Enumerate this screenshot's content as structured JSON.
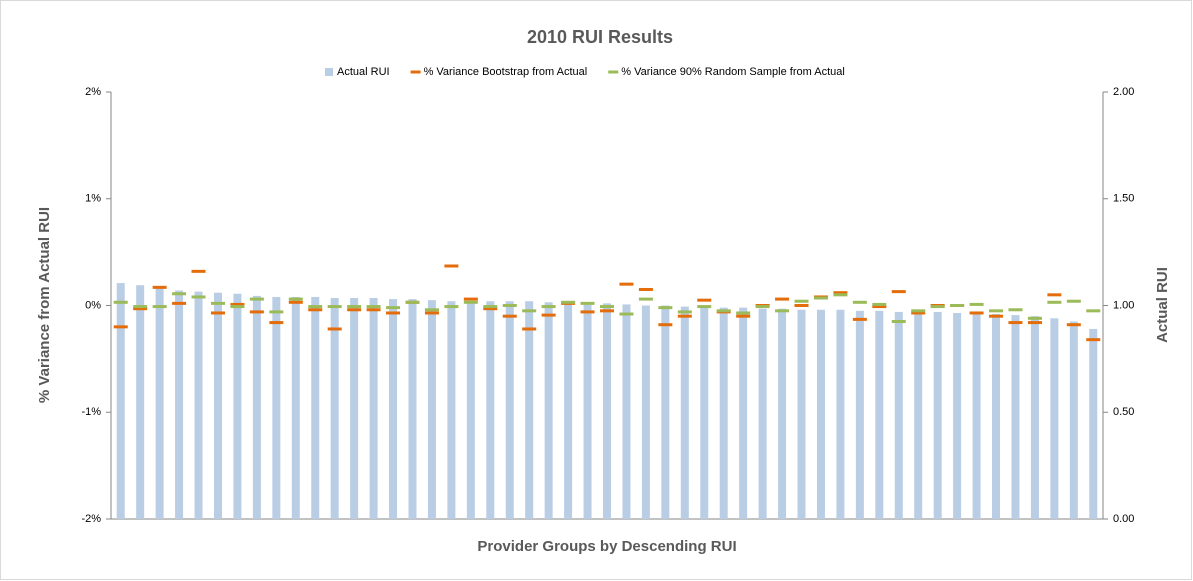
{
  "chart_data": {
    "type": "bar",
    "title": "2010 RUI Results",
    "x_label": "Provider Groups by Descending RUI",
    "y_label": "% Variance from Actual RUI",
    "y2_label": "Actual RUI",
    "categories": [
      null,
      null,
      null,
      null,
      null,
      null,
      null,
      null,
      null,
      null,
      null,
      null,
      null,
      null,
      null,
      null,
      null,
      null,
      null,
      null,
      null,
      null,
      null,
      null,
      null,
      null,
      null,
      null,
      null,
      null,
      null,
      null,
      null,
      null,
      null,
      null,
      null,
      null,
      null,
      null,
      null,
      null,
      null,
      null,
      null,
      null,
      null,
      null,
      null,
      null,
      null
    ],
    "series": [
      {
        "name": "Actual RUI",
        "type": "bar",
        "axis": "y2",
        "color": "#b9cde5",
        "values": [
          1.105,
          1.095,
          1.08,
          1.07,
          1.065,
          1.06,
          1.055,
          1.045,
          1.04,
          1.04,
          1.04,
          1.035,
          1.035,
          1.035,
          1.03,
          1.03,
          1.025,
          1.02,
          1.02,
          1.02,
          1.02,
          1.02,
          1.015,
          1.015,
          1.01,
          1.01,
          1.005,
          1.0,
          1.0,
          0.995,
          0.99,
          0.99,
          0.99,
          0.985,
          0.985,
          0.98,
          0.98,
          0.98,
          0.975,
          0.975,
          0.97,
          0.97,
          0.97,
          0.965,
          0.96,
          0.96,
          0.955,
          0.95,
          0.94,
          0.925,
          0.89
        ]
      },
      {
        "name": "% Variance Bootstrap from Actual",
        "type": "dash",
        "color": "#e46c0a",
        "values": [
          -0.2,
          -0.03,
          0.17,
          0.02,
          0.32,
          -0.07,
          0.01,
          -0.06,
          -0.16,
          0.03,
          -0.04,
          -0.22,
          -0.04,
          -0.04,
          -0.07,
          0.03,
          -0.07,
          0.37,
          0.06,
          -0.03,
          -0.1,
          -0.22,
          -0.09,
          0.02,
          -0.06,
          -0.05,
          0.2,
          0.15,
          -0.18,
          -0.1,
          0.05,
          -0.06,
          -0.1,
          0.0,
          0.06,
          0.0,
          0.08,
          0.12,
          -0.13,
          -0.01,
          0.13,
          -0.07,
          0.0,
          0.0,
          -0.07,
          -0.1,
          -0.16,
          -0.16,
          0.1,
          -0.18,
          -0.32
        ]
      },
      {
        "name": "% Variance 90% Random Sample from Actual",
        "type": "dash",
        "color": "#9bbb59",
        "values": [
          0.03,
          -0.01,
          -0.01,
          0.11,
          0.08,
          0.02,
          -0.01,
          0.06,
          -0.06,
          0.06,
          -0.01,
          -0.01,
          -0.01,
          -0.01,
          -0.02,
          0.03,
          -0.04,
          -0.01,
          0.03,
          -0.01,
          0.0,
          -0.05,
          -0.01,
          0.03,
          0.02,
          -0.01,
          -0.08,
          0.06,
          -0.02,
          -0.06,
          -0.01,
          -0.05,
          -0.07,
          -0.01,
          -0.05,
          0.04,
          0.07,
          0.1,
          0.03,
          0.01,
          -0.15,
          -0.05,
          -0.01,
          0.0,
          0.01,
          -0.05,
          -0.04,
          -0.12,
          0.03,
          0.04,
          -0.05
        ]
      }
    ],
    "ylim": [
      -2,
      2
    ],
    "yticks": [
      {
        "value": -2,
        "label": "-2%"
      },
      {
        "value": -1,
        "label": "-1%"
      },
      {
        "value": 0,
        "label": "0%"
      },
      {
        "value": 1,
        "label": "1%"
      },
      {
        "value": 2,
        "label": "2%"
      }
    ],
    "y2lim": [
      0,
      2
    ],
    "y2ticks": [
      {
        "value": 0,
        "label": "0.00"
      },
      {
        "value": 0.5,
        "label": "0.50"
      },
      {
        "value": 1,
        "label": "1.00"
      },
      {
        "value": 1.5,
        "label": "1.50"
      },
      {
        "value": 2,
        "label": "2.00"
      }
    ],
    "grid": false,
    "legend": "top"
  }
}
